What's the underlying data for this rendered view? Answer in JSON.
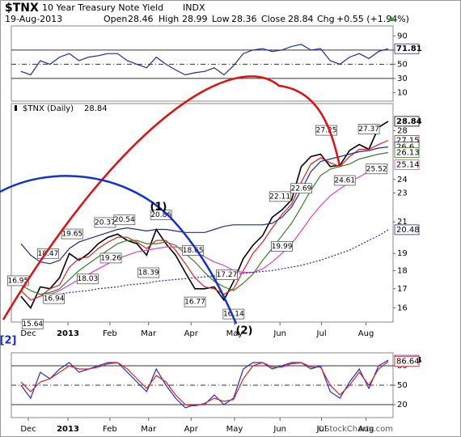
{
  "header": {
    "symbol": "$TNX",
    "name": "10 Year Treasury Note Yield",
    "exchange": "INDX",
    "date": "19-Aug-2013",
    "open_label": "Open",
    "open": 28.46,
    "high_label": "High",
    "high": 28.99,
    "low_label": "Low",
    "low": 28.36,
    "close_label": "Close",
    "close": 28.84,
    "chg_label": "Chg",
    "chg": "+0.55 (+1.94%)",
    "credit": "©StockCharts.com"
  },
  "wave_labels": [
    "(1)",
    "(2)",
    "[2]"
  ],
  "chart_data": [
    {
      "type": "line",
      "xlim": [
        -1,
        38.5
      ],
      "ylim": [
        -2,
        104
      ],
      "yticks": [
        10,
        30,
        50,
        70,
        90
      ],
      "levels": [
        30,
        70
      ],
      "midline": 50,
      "x": [
        0,
        1,
        2,
        3,
        4,
        5,
        6,
        7,
        8,
        9,
        10,
        11,
        12,
        13,
        14,
        15,
        16,
        17,
        18,
        19,
        20,
        21,
        22,
        23,
        24,
        25,
        26,
        27,
        28,
        29,
        30,
        31,
        32,
        33,
        34,
        35,
        36,
        37,
        38
      ],
      "series": [
        {
          "color": "#1f2f8f",
          "values": [
            40,
            35,
            55,
            50,
            60,
            65,
            55,
            60,
            62,
            65,
            65,
            55,
            50,
            45,
            60,
            50,
            42,
            35,
            38,
            40,
            45,
            35,
            48,
            65,
            70,
            72,
            68,
            70,
            75,
            78,
            70,
            72,
            55,
            50,
            60,
            65,
            58,
            68,
            71.81
          ]
        }
      ]
    },
    {
      "type": "line",
      "log_scale": true,
      "label": "$TNX (Daily)",
      "xlim": [
        -1,
        38.5
      ],
      "ylim": [
        15.3,
        30.5
      ],
      "yticks": [
        16,
        17,
        18,
        19,
        21,
        23,
        24,
        28
      ],
      "xticks": [
        {
          "value": 0.76,
          "label": "Dec"
        },
        {
          "value": 4.86,
          "label": "2013"
        },
        {
          "value": 9.2,
          "label": "Feb"
        },
        {
          "value": 13.2,
          "label": "Mar"
        },
        {
          "value": 17.6,
          "label": "Apr"
        },
        {
          "value": 22.1,
          "label": "May"
        },
        {
          "value": 26.8,
          "label": "Jun"
        },
        {
          "value": 31.1,
          "label": "Jul"
        },
        {
          "value": 35.7,
          "label": "Aug"
        }
      ],
      "x": [
        0,
        1,
        2,
        3,
        4,
        5,
        6,
        7,
        8,
        9,
        10,
        11,
        12,
        13,
        14,
        15,
        16,
        17,
        18,
        19,
        20,
        21,
        22,
        23,
        24,
        25,
        26,
        27,
        28,
        29,
        30,
        31,
        32,
        33,
        34,
        35,
        36,
        37,
        38
      ],
      "series": [
        {
          "color": "#000000",
          "values": [
            16.6,
            16.0,
            17.1,
            17.0,
            17.6,
            19.0,
            18.6,
            19.0,
            19.6,
            20.0,
            20.2,
            19.8,
            19.6,
            18.9,
            20.5,
            19.6,
            18.9,
            17.9,
            17.0,
            17.0,
            17.1,
            16.4,
            17.4,
            18.7,
            19.5,
            20.1,
            21.3,
            21.8,
            22.5,
            25.0,
            25.8,
            26.0,
            25.0,
            25.1,
            26.3,
            26.8,
            26.4,
            28.3,
            28.84
          ]
        },
        {
          "color": "#e02020",
          "values": [
            16.9,
            16.4,
            16.6,
            17.0,
            17.2,
            18.2,
            18.7,
            18.8,
            19.3,
            19.7,
            20.0,
            20.0,
            19.7,
            19.3,
            19.8,
            19.8,
            19.2,
            18.4,
            17.6,
            17.1,
            17.0,
            16.7,
            17.0,
            18.0,
            19.0,
            19.7,
            20.6,
            21.5,
            22.2,
            23.8,
            25.2,
            25.7,
            25.3,
            25.0,
            25.8,
            26.4,
            26.4,
            26.8,
            27.15
          ]
        },
        {
          "color": "#1f2f7f",
          "values": [
            19.6,
            18.9,
            18.5,
            18.4,
            18.6,
            19.3,
            19.7,
            19.9,
            20.1,
            20.3,
            20.5,
            20.6,
            20.5,
            20.4,
            20.5,
            20.5,
            20.4,
            20.3,
            20.3,
            20.3,
            20.5,
            20.7,
            20.8,
            20.8,
            20.8,
            20.8,
            20.9,
            21.3,
            22.0,
            23.2,
            24.6,
            25.4,
            25.6,
            25.8,
            26.0,
            26.2,
            26.3,
            26.5,
            26.6
          ]
        },
        {
          "color": "#3a7d2a",
          "values": [
            17.2,
            16.9,
            16.7,
            16.8,
            17.0,
            17.5,
            18.0,
            18.4,
            18.8,
            19.2,
            19.6,
            19.8,
            19.8,
            19.6,
            19.6,
            19.7,
            19.5,
            19.0,
            18.5,
            17.9,
            17.4,
            17.1,
            16.9,
            17.3,
            17.8,
            18.6,
            19.3,
            20.1,
            20.9,
            22.0,
            23.2,
            24.3,
            24.8,
            25.0,
            25.2,
            25.6,
            25.8,
            26.0,
            26.13
          ]
        },
        {
          "color": "#e040d0",
          "values": [
            null,
            null,
            16.6,
            16.7,
            16.9,
            17.2,
            17.5,
            17.8,
            18.1,
            18.4,
            18.7,
            18.9,
            19.1,
            19.2,
            19.3,
            19.4,
            19.4,
            19.3,
            19.1,
            18.8,
            18.5,
            18.3,
            18.0,
            17.9,
            17.9,
            18.1,
            18.5,
            19.0,
            19.6,
            20.4,
            21.3,
            22.1,
            22.8,
            23.3,
            23.8,
            24.2,
            24.6,
            24.9,
            25.14
          ]
        },
        {
          "color": "#1f2f8f",
          "dash": true,
          "values": [
            null,
            null,
            null,
            16.6,
            16.7,
            16.8,
            16.85,
            16.9,
            17.0,
            17.05,
            17.1,
            17.2,
            17.25,
            17.3,
            17.4,
            17.45,
            17.5,
            17.55,
            17.6,
            17.65,
            17.7,
            17.75,
            17.8,
            17.85,
            17.9,
            17.95,
            18.0,
            18.1,
            18.2,
            18.3,
            18.45,
            18.6,
            18.8,
            19.0,
            19.2,
            19.5,
            19.8,
            20.1,
            20.48
          ]
        }
      ],
      "annotations": [
        {
          "x": -0.3,
          "value": 16.95,
          "side": "high"
        },
        {
          "x": 1.2,
          "value": 15.64,
          "side": "low"
        },
        {
          "x": 2.8,
          "value": 18.47,
          "side": "high"
        },
        {
          "x": 3.4,
          "value": 16.94,
          "side": "low"
        },
        {
          "x": 5.3,
          "value": 19.65,
          "side": "high"
        },
        {
          "x": 6.9,
          "value": 18.03,
          "side": "low"
        },
        {
          "x": 8.7,
          "value": 20.37,
          "side": "high"
        },
        {
          "x": 9.3,
          "value": 19.26,
          "side": "low"
        },
        {
          "x": 10.7,
          "value": 20.54,
          "side": "high"
        },
        {
          "x": 13.2,
          "value": 18.39,
          "side": "low"
        },
        {
          "x": 14.5,
          "value": 20.86,
          "side": "high"
        },
        {
          "x": 17.8,
          "value": 18.65,
          "side": "high"
        },
        {
          "x": 18.0,
          "value": 16.77,
          "side": "low"
        },
        {
          "x": 21.3,
          "value": 17.27,
          "side": "high"
        },
        {
          "x": 22.0,
          "value": 16.14,
          "side": "low"
        },
        {
          "x": 26.8,
          "value": 22.11,
          "side": "high"
        },
        {
          "x": 27.0,
          "value": 19.99,
          "side": "low"
        },
        {
          "x": 29.0,
          "value": 22.69,
          "side": "high"
        },
        {
          "x": 31.6,
          "value": 27.25,
          "side": "high"
        },
        {
          "x": 33.5,
          "value": 24.61,
          "side": "low"
        },
        {
          "x": 36.0,
          "value": 27.37,
          "side": "high"
        },
        {
          "x": 36.8,
          "value": 25.52,
          "side": "low"
        }
      ]
    },
    {
      "type": "line",
      "xlim": [
        -1,
        38.5
      ],
      "ylim": [
        0,
        100
      ],
      "yticks": [
        20,
        50,
        80
      ],
      "levels": [
        20,
        80
      ],
      "midline": 50,
      "xticks": [
        {
          "value": 0.76,
          "label": "Dec"
        },
        {
          "value": 4.86,
          "label": "2013"
        },
        {
          "value": 9.2,
          "label": "Feb"
        },
        {
          "value": 13.2,
          "label": "Mar"
        },
        {
          "value": 17.6,
          "label": "Apr"
        },
        {
          "value": 22.1,
          "label": "May"
        },
        {
          "value": 26.8,
          "label": "Jun"
        },
        {
          "value": 31.1,
          "label": "Jul"
        },
        {
          "value": 35.7,
          "label": "Aug"
        }
      ],
      "x": [
        0,
        1,
        2,
        3,
        4,
        5,
        6,
        7,
        8,
        9,
        10,
        11,
        12,
        13,
        14,
        15,
        16,
        17,
        18,
        19,
        20,
        21,
        22,
        23,
        24,
        25,
        26,
        27,
        28,
        29,
        30,
        31,
        32,
        33,
        34,
        35,
        36,
        37,
        38
      ],
      "series": [
        {
          "color": "#2030c0",
          "values": [
            50,
            30,
            70,
            60,
            75,
            85,
            70,
            75,
            80,
            85,
            85,
            70,
            55,
            40,
            75,
            50,
            30,
            15,
            20,
            20,
            35,
            20,
            30,
            75,
            85,
            85,
            75,
            80,
            85,
            85,
            75,
            80,
            40,
            30,
            55,
            75,
            45,
            80,
            88.64
          ]
        },
        {
          "color": "#e02020",
          "values": [
            55,
            40,
            55,
            60,
            70,
            80,
            75,
            75,
            78,
            83,
            85,
            75,
            60,
            45,
            65,
            55,
            35,
            20,
            18,
            22,
            30,
            25,
            28,
            60,
            80,
            85,
            78,
            78,
            83,
            85,
            78,
            78,
            50,
            35,
            50,
            70,
            50,
            75,
            86.64
          ]
        }
      ]
    }
  ]
}
